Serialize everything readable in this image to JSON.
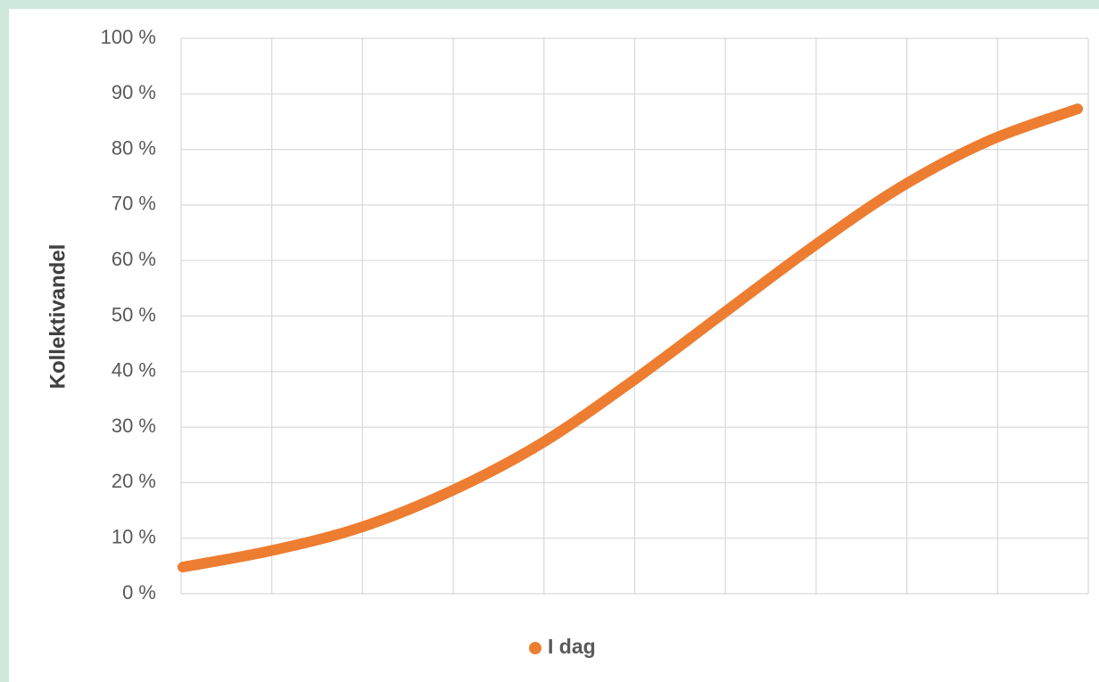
{
  "chart_data": {
    "type": "line",
    "y_label": "Kollektivandel",
    "categories": [
      null,
      null,
      null,
      null,
      null,
      null,
      null,
      null,
      null,
      null,
      null
    ],
    "series": [
      {
        "name": "I dag",
        "color": "#ed7d31",
        "values": [
          4.8,
          7.8,
          12,
          18.5,
          27,
          38,
          50,
          62,
          73,
          81.5,
          87.3
        ]
      }
    ],
    "ylim": [
      0,
      100
    ],
    "yticks": [
      {
        "value": 0,
        "label": "0 %"
      },
      {
        "value": 10,
        "label": "10 %"
      },
      {
        "value": 20,
        "label": "20 %"
      },
      {
        "value": 30,
        "label": "30 %"
      },
      {
        "value": 40,
        "label": "40 %"
      },
      {
        "value": 50,
        "label": "50 %"
      },
      {
        "value": 60,
        "label": "60 %"
      },
      {
        "value": 70,
        "label": "70 %"
      },
      {
        "value": 80,
        "label": "80 %"
      },
      {
        "value": 90,
        "label": "90 %"
      },
      {
        "value": 100,
        "label": "100 %"
      }
    ],
    "grid": true,
    "legend": "bottom"
  }
}
